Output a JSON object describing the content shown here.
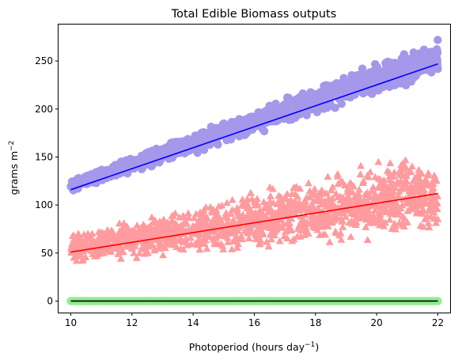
{
  "chart_data": {
    "type": "scatter",
    "title": "Total Edible Biomass outputs",
    "xlabel": {
      "main": "Photoperiod (hours day",
      "sup": "−1",
      "close": ")"
    },
    "ylabel": {
      "main": "grams m",
      "sup": "−2"
    },
    "xlim": [
      9.6,
      22.4
    ],
    "ylim": [
      -12,
      288
    ],
    "xticks": [
      10,
      12,
      14,
      16,
      18,
      20,
      22
    ],
    "yticks": [
      0,
      50,
      100,
      150,
      200,
      250
    ],
    "grid": false,
    "legend": "none",
    "series": [
      {
        "marker": "circle",
        "color": "#a597ea",
        "line_color": "#0000ff",
        "x_range": [
          10,
          22
        ],
        "fit": {
          "x": [
            10,
            22
          ],
          "y": [
            116,
            247
          ]
        },
        "spread_at_start": [
          112,
          128
        ],
        "spread_at_end": [
          232,
          275
        ]
      },
      {
        "marker": "triangle",
        "color": "#ff9a9e",
        "line_color": "#ff0000",
        "x_range": [
          10,
          22
        ],
        "fit": {
          "x": [
            10,
            22
          ],
          "y": [
            51,
            112
          ]
        },
        "spread_at_start": [
          38,
          72
        ],
        "spread_at_end": [
          60,
          165
        ]
      },
      {
        "marker": "circle",
        "color": "#90ee90",
        "line_color": "#000000",
        "x_range": [
          10,
          22
        ],
        "fit": {
          "x": [
            10,
            22
          ],
          "y": [
            0,
            0
          ]
        },
        "spread_at_start": [
          0,
          0
        ],
        "spread_at_end": [
          0,
          0
        ]
      }
    ]
  }
}
